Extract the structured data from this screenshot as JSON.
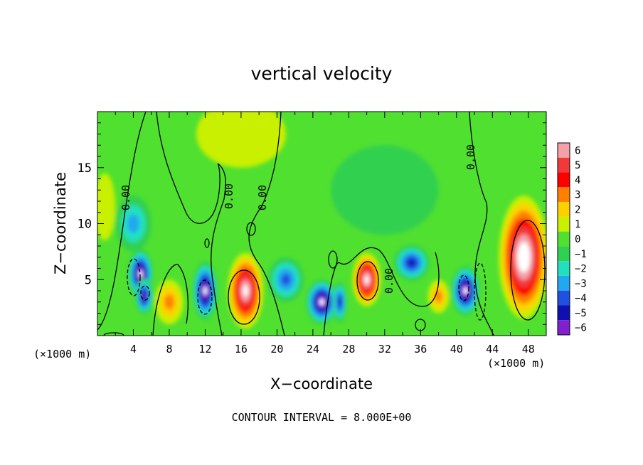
{
  "chart_data": {
    "type": "heatmap",
    "title": "vertical velocity",
    "xlabel": "X−coordinate",
    "ylabel": "Z−coordinate",
    "x_unit": "(×1000 m)",
    "footer": "CONTOUR INTERVAL = 8.000E+00",
    "xlim": [
      0,
      50
    ],
    "ylim": [
      0,
      20
    ],
    "x_ticks": [
      "4",
      "8",
      "12",
      "16",
      "20",
      "24",
      "28",
      "32",
      "36",
      "40",
      "44",
      "48"
    ],
    "y_ticks": [
      "5",
      "10",
      "15"
    ],
    "colorbar": {
      "labels": [
        "6",
        "5",
        "4",
        "3",
        "2",
        "1",
        "0",
        "−1",
        "−2",
        "−3",
        "−4",
        "−5",
        "−6"
      ],
      "colors": [
        "#f4a0a8",
        "#f03a3a",
        "#ff0000",
        "#ff8000",
        "#ffd000",
        "#c8f000",
        "#50e030",
        "#30d050",
        "#20e0c0",
        "#20a8f0",
        "#2050e0",
        "#1010b0",
        "#8020d0"
      ]
    },
    "contour_labels": [
      "0.00",
      "0.00",
      "0.00",
      "0.00",
      "0.00"
    ],
    "cells": [
      {
        "x": 0.8,
        "z": 11.5,
        "w": 1.2,
        "sx": 1.2,
        "sz": 3.0
      },
      {
        "x": 4.0,
        "z": 10.0,
        "w": -2.5,
        "sx": 2.0,
        "sz": 2.5
      },
      {
        "x": 4.8,
        "z": 5.5,
        "w": -6.5,
        "sx": 1.4,
        "sz": 2.2
      },
      {
        "x": 5.2,
        "z": 3.5,
        "w": -6.0,
        "sx": 1.0,
        "sz": 1.6
      },
      {
        "x": 8.0,
        "z": 3.0,
        "w": 3.0,
        "sx": 1.6,
        "sz": 2.0
      },
      {
        "x": 12.0,
        "z": 4.0,
        "w": -6.5,
        "sx": 1.4,
        "sz": 2.6
      },
      {
        "x": 16.5,
        "z": 4.0,
        "w": 7.0,
        "sx": 2.0,
        "sz": 3.4
      },
      {
        "x": 21.0,
        "z": 5.0,
        "w": -3.5,
        "sx": 2.0,
        "sz": 2.0
      },
      {
        "x": 25.0,
        "z": 3.0,
        "w": -7.0,
        "sx": 1.8,
        "sz": 2.0
      },
      {
        "x": 27.0,
        "z": 3.0,
        "w": -5.0,
        "sx": 0.8,
        "sz": 1.8
      },
      {
        "x": 30.0,
        "z": 5.0,
        "w": 7.0,
        "sx": 1.6,
        "sz": 2.4
      },
      {
        "x": 35.0,
        "z": 6.5,
        "w": -4.5,
        "sx": 2.0,
        "sz": 1.6
      },
      {
        "x": 38.0,
        "z": 3.5,
        "w": 3.0,
        "sx": 1.2,
        "sz": 1.5
      },
      {
        "x": 41.0,
        "z": 4.0,
        "w": -6.5,
        "sx": 1.6,
        "sz": 2.2
      },
      {
        "x": 47.5,
        "z": 7.0,
        "w": 8.0,
        "sx": 2.8,
        "sz": 5.5
      },
      {
        "x": 32.0,
        "z": 13.0,
        "w": -1.2,
        "sx": 6.0,
        "sz": 4.0
      },
      {
        "x": 16.0,
        "z": 18.0,
        "w": 1.0,
        "sx": 5.0,
        "sz": 3.0
      }
    ]
  }
}
